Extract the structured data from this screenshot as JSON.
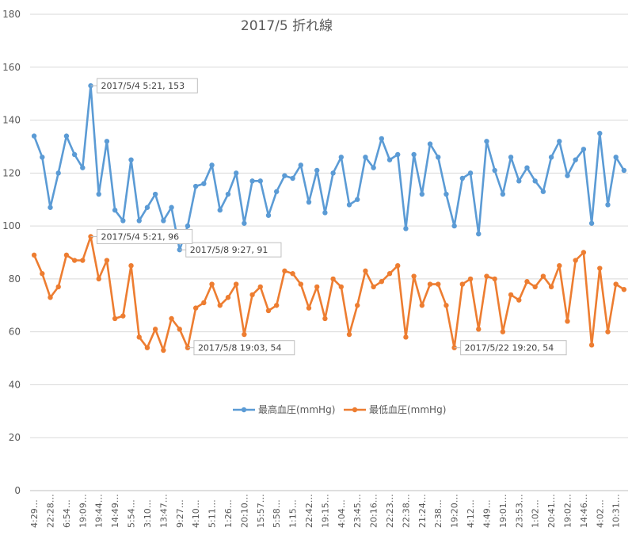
{
  "chart_data": {
    "type": "line",
    "title": "2017/5  折れ線",
    "ylim": [
      0,
      180
    ],
    "yticks": [
      0,
      20,
      40,
      60,
      80,
      100,
      120,
      140,
      160,
      180
    ],
    "grid": true,
    "legend_position": "center",
    "x": [
      "4:29",
      "",
      "22:28",
      "",
      "6:54",
      "",
      "19:09",
      "",
      "19:44",
      "",
      "14:49",
      "",
      "5:54",
      "",
      "3:10",
      "",
      "13:47",
      "",
      "9:27",
      "",
      "4:10",
      "",
      "5:11",
      "",
      "1:26",
      "",
      "20:10",
      "",
      "15:57",
      "",
      "5:58",
      "",
      "1:15",
      "",
      "22:42",
      "",
      "19:15",
      "",
      "4:04",
      "",
      "23:45",
      "",
      "20:16",
      "",
      "22:23",
      "",
      "22:38",
      "",
      "21:24",
      "",
      "2:38",
      "",
      "19:20",
      "",
      "4:12",
      "",
      "4:49",
      "",
      "19:01",
      "",
      "23:53",
      "",
      "1:02",
      "",
      "20:41",
      "",
      "19:02",
      "",
      "14:46",
      "",
      "4:02",
      "",
      "10:31",
      ""
    ],
    "series": [
      {
        "name": "最高血圧(mmHg)",
        "color": "#5b9bd5",
        "values": [
          134,
          126,
          107,
          120,
          134,
          127,
          122,
          153,
          112,
          132,
          106,
          102,
          125,
          102,
          107,
          112,
          102,
          107,
          91,
          100,
          115,
          116,
          123,
          106,
          112,
          120,
          101,
          117,
          117,
          104,
          113,
          119,
          118,
          123,
          109,
          121,
          105,
          120,
          126,
          108,
          110,
          126,
          122,
          133,
          125,
          127,
          99,
          127,
          112,
          131,
          126,
          112,
          100,
          118,
          120,
          97,
          132,
          121,
          112,
          126,
          117,
          122,
          117,
          113,
          126,
          132,
          119,
          125,
          129,
          101,
          135,
          108,
          126,
          121
        ]
      },
      {
        "name": "最低血圧(mmHg)",
        "color": "#ed7d31",
        "values": [
          89,
          82,
          73,
          77,
          89,
          87,
          87,
          96,
          80,
          87,
          65,
          66,
          85,
          58,
          54,
          61,
          53,
          65,
          61,
          54,
          69,
          71,
          78,
          70,
          73,
          78,
          59,
          74,
          77,
          68,
          70,
          83,
          82,
          78,
          69,
          77,
          65,
          80,
          77,
          59,
          70,
          83,
          77,
          79,
          82,
          85,
          58,
          81,
          70,
          78,
          78,
          70,
          54,
          78,
          80,
          61,
          81,
          80,
          60,
          74,
          72,
          79,
          77,
          81,
          77,
          85,
          64,
          87,
          90,
          55,
          84,
          60,
          78,
          76
        ]
      }
    ],
    "annotations": [
      {
        "text": "2017/5/4 5:21, 153",
        "series": 0,
        "index": 7
      },
      {
        "text": "2017/5/8 9:27, 91",
        "series": 0,
        "index": 18
      },
      {
        "text": "2017/5/4 5:21, 96",
        "series": 1,
        "index": 7
      },
      {
        "text": "2017/5/8 19:03, 54",
        "series": 1,
        "index": 19
      },
      {
        "text": "2017/5/22 19:20, 54",
        "series": 1,
        "index": 52
      }
    ]
  }
}
